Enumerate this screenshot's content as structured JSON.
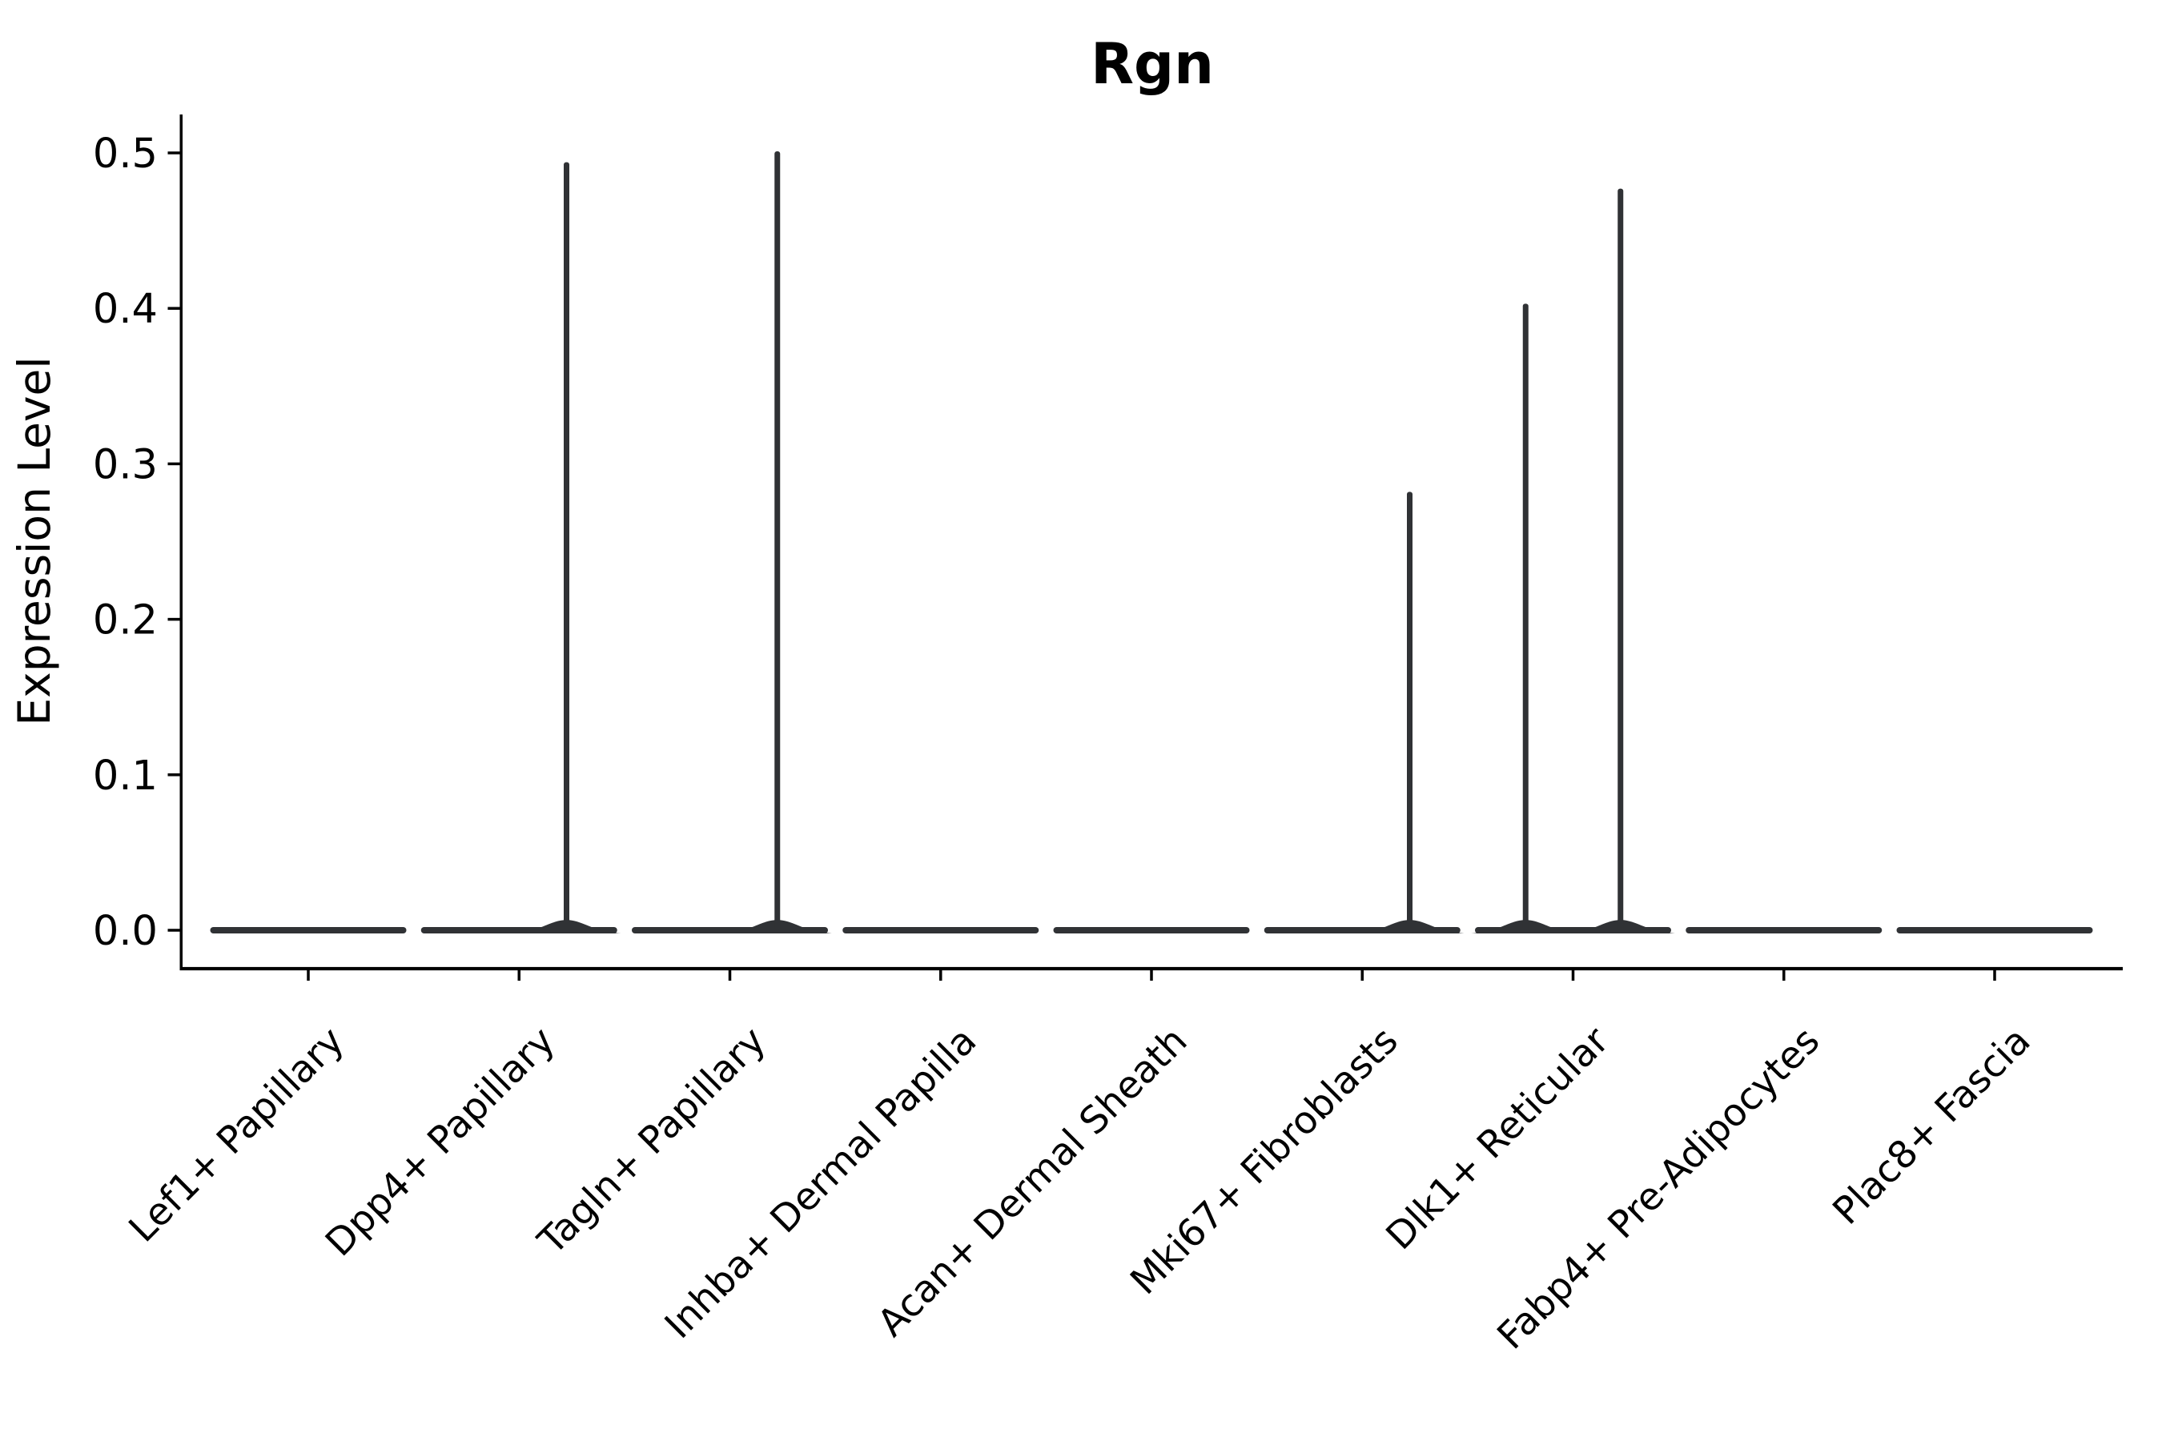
{
  "figure": {
    "title": "Rgn"
  },
  "chart_data": {
    "type": "violin",
    "title": "Rgn",
    "xlabel": "",
    "ylabel": "Expression Level",
    "y_tick_labels": [
      "0.0",
      "0.1",
      "0.2",
      "0.3",
      "0.4",
      "0.5"
    ],
    "y_tick_values": [
      0.0,
      0.1,
      0.2,
      0.3,
      0.4,
      0.5
    ],
    "ylim": [
      -0.025,
      0.525
    ],
    "grid": false,
    "legend_position": "none",
    "categories": [
      "Lef1+ Papillary",
      "Dpp4+ Papillary",
      "Tagln+ Papillary",
      "Inhba+ Dermal Papilla",
      "Acan+ Dermal Sheath",
      "Mki67+ Fibroblasts",
      "Dlk1+ Reticular",
      "Fabp4+ Pre-Adipocytes",
      "Plac8+ Fascia"
    ],
    "violins": [
      {
        "category": "Lef1+ Papillary",
        "baseline": 0.0,
        "spikes": []
      },
      {
        "category": "Dpp4+ Papillary",
        "baseline": 0.0,
        "spikes": [
          {
            "side": "right",
            "peak": 0.494
          }
        ]
      },
      {
        "category": "Tagln+ Papillary",
        "baseline": 0.0,
        "spikes": [
          {
            "side": "right",
            "peak": 0.501
          }
        ]
      },
      {
        "category": "Inhba+ Dermal Papilla",
        "baseline": 0.0,
        "spikes": []
      },
      {
        "category": "Acan+ Dermal Sheath",
        "baseline": 0.0,
        "spikes": []
      },
      {
        "category": "Mki67+ Fibroblasts",
        "baseline": 0.0,
        "spikes": [
          {
            "side": "right",
            "peak": 0.282
          }
        ]
      },
      {
        "category": "Dlk1+ Reticular",
        "baseline": 0.0,
        "spikes": [
          {
            "side": "left",
            "peak": 0.403
          },
          {
            "side": "right",
            "peak": 0.477
          }
        ]
      },
      {
        "category": "Fabp4+ Pre-Adipocytes",
        "baseline": 0.0,
        "spikes": []
      },
      {
        "category": "Plac8+ Fascia",
        "baseline": 0.0,
        "spikes": []
      }
    ],
    "colors": {
      "violin_fill": "#303235",
      "axis": "#000000",
      "text": "#000000",
      "background": "#ffffff"
    }
  }
}
